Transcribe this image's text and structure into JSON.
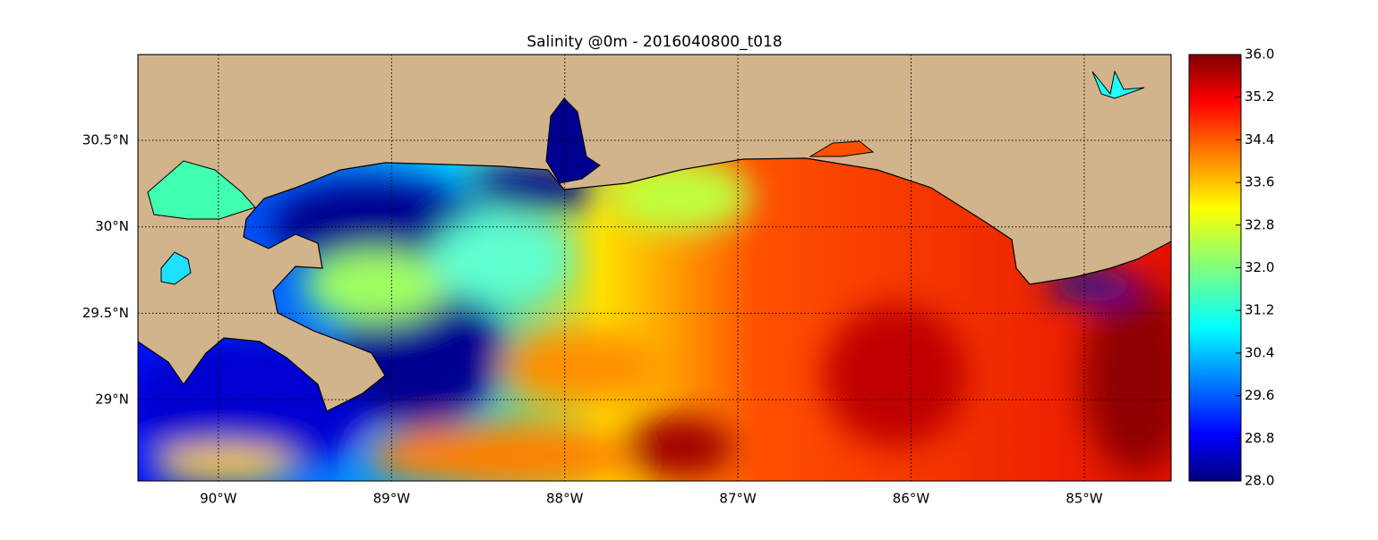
{
  "chart_data": {
    "type": "map",
    "title": "Salinity @0m - 2016040800_t018",
    "xlim": [
      -90.465,
      -84.498
    ],
    "ylim": [
      28.529,
      30.997
    ],
    "xticks": [
      {
        "value": -90,
        "label": "90°W"
      },
      {
        "value": -89,
        "label": "89°W"
      },
      {
        "value": -88,
        "label": "88°W"
      },
      {
        "value": -87,
        "label": "87°W"
      },
      {
        "value": -86,
        "label": "86°W"
      },
      {
        "value": -85,
        "label": "85°W"
      }
    ],
    "yticks": [
      {
        "value": 29,
        "label": "29°N"
      },
      {
        "value": 29.5,
        "label": "29.5°N"
      },
      {
        "value": 30,
        "label": "30°N"
      },
      {
        "value": 30.5,
        "label": "30.5°N"
      }
    ],
    "grid": true,
    "colorbar": {
      "lim": [
        28,
        36
      ],
      "colormap": "jet",
      "ticks": [
        {
          "value": 28,
          "label": "28.0"
        },
        {
          "value": 28.8,
          "label": "28.8"
        },
        {
          "value": 29.6,
          "label": "29.6"
        },
        {
          "value": 30.4,
          "label": "30.4"
        },
        {
          "value": 31.2,
          "label": "31.2"
        },
        {
          "value": 32,
          "label": "32.0"
        },
        {
          "value": 32.8,
          "label": "32.8"
        },
        {
          "value": 33.6,
          "label": "33.6"
        },
        {
          "value": 34.4,
          "label": "34.4"
        },
        {
          "value": 35.2,
          "label": "35.2"
        },
        {
          "value": 36,
          "label": "36.0"
        }
      ]
    }
  }
}
